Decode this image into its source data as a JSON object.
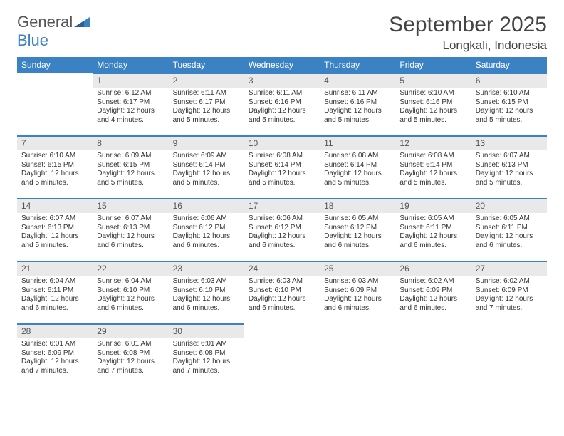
{
  "brand": {
    "text_a": "General",
    "text_b": "Blue",
    "accent": "#3b82c4",
    "gray": "#6b6b6b"
  },
  "header": {
    "title": "September 2025",
    "location": "Longkali, Indonesia"
  },
  "colors": {
    "header_bg": "#3b82c4",
    "header_fg": "#ffffff",
    "daybar_bg": "#e9e9e9",
    "daybar_border": "#3b82c4",
    "body_fg": "#333333"
  },
  "weekdays": [
    "Sunday",
    "Monday",
    "Tuesday",
    "Wednesday",
    "Thursday",
    "Friday",
    "Saturday"
  ],
  "layout": {
    "columns": 7,
    "rows": 6,
    "cell_fontsize_pt": 10,
    "daynum_fontsize_pt": 12
  },
  "weeks": [
    [
      null,
      {
        "n": "1",
        "sr": "Sunrise: 6:12 AM",
        "ss": "Sunset: 6:17 PM",
        "dl": "Daylight: 12 hours and 4 minutes."
      },
      {
        "n": "2",
        "sr": "Sunrise: 6:11 AM",
        "ss": "Sunset: 6:17 PM",
        "dl": "Daylight: 12 hours and 5 minutes."
      },
      {
        "n": "3",
        "sr": "Sunrise: 6:11 AM",
        "ss": "Sunset: 6:16 PM",
        "dl": "Daylight: 12 hours and 5 minutes."
      },
      {
        "n": "4",
        "sr": "Sunrise: 6:11 AM",
        "ss": "Sunset: 6:16 PM",
        "dl": "Daylight: 12 hours and 5 minutes."
      },
      {
        "n": "5",
        "sr": "Sunrise: 6:10 AM",
        "ss": "Sunset: 6:16 PM",
        "dl": "Daylight: 12 hours and 5 minutes."
      },
      {
        "n": "6",
        "sr": "Sunrise: 6:10 AM",
        "ss": "Sunset: 6:15 PM",
        "dl": "Daylight: 12 hours and 5 minutes."
      }
    ],
    [
      {
        "n": "7",
        "sr": "Sunrise: 6:10 AM",
        "ss": "Sunset: 6:15 PM",
        "dl": "Daylight: 12 hours and 5 minutes."
      },
      {
        "n": "8",
        "sr": "Sunrise: 6:09 AM",
        "ss": "Sunset: 6:15 PM",
        "dl": "Daylight: 12 hours and 5 minutes."
      },
      {
        "n": "9",
        "sr": "Sunrise: 6:09 AM",
        "ss": "Sunset: 6:14 PM",
        "dl": "Daylight: 12 hours and 5 minutes."
      },
      {
        "n": "10",
        "sr": "Sunrise: 6:08 AM",
        "ss": "Sunset: 6:14 PM",
        "dl": "Daylight: 12 hours and 5 minutes."
      },
      {
        "n": "11",
        "sr": "Sunrise: 6:08 AM",
        "ss": "Sunset: 6:14 PM",
        "dl": "Daylight: 12 hours and 5 minutes."
      },
      {
        "n": "12",
        "sr": "Sunrise: 6:08 AM",
        "ss": "Sunset: 6:14 PM",
        "dl": "Daylight: 12 hours and 5 minutes."
      },
      {
        "n": "13",
        "sr": "Sunrise: 6:07 AM",
        "ss": "Sunset: 6:13 PM",
        "dl": "Daylight: 12 hours and 5 minutes."
      }
    ],
    [
      {
        "n": "14",
        "sr": "Sunrise: 6:07 AM",
        "ss": "Sunset: 6:13 PM",
        "dl": "Daylight: 12 hours and 5 minutes."
      },
      {
        "n": "15",
        "sr": "Sunrise: 6:07 AM",
        "ss": "Sunset: 6:13 PM",
        "dl": "Daylight: 12 hours and 6 minutes."
      },
      {
        "n": "16",
        "sr": "Sunrise: 6:06 AM",
        "ss": "Sunset: 6:12 PM",
        "dl": "Daylight: 12 hours and 6 minutes."
      },
      {
        "n": "17",
        "sr": "Sunrise: 6:06 AM",
        "ss": "Sunset: 6:12 PM",
        "dl": "Daylight: 12 hours and 6 minutes."
      },
      {
        "n": "18",
        "sr": "Sunrise: 6:05 AM",
        "ss": "Sunset: 6:12 PM",
        "dl": "Daylight: 12 hours and 6 minutes."
      },
      {
        "n": "19",
        "sr": "Sunrise: 6:05 AM",
        "ss": "Sunset: 6:11 PM",
        "dl": "Daylight: 12 hours and 6 minutes."
      },
      {
        "n": "20",
        "sr": "Sunrise: 6:05 AM",
        "ss": "Sunset: 6:11 PM",
        "dl": "Daylight: 12 hours and 6 minutes."
      }
    ],
    [
      {
        "n": "21",
        "sr": "Sunrise: 6:04 AM",
        "ss": "Sunset: 6:11 PM",
        "dl": "Daylight: 12 hours and 6 minutes."
      },
      {
        "n": "22",
        "sr": "Sunrise: 6:04 AM",
        "ss": "Sunset: 6:10 PM",
        "dl": "Daylight: 12 hours and 6 minutes."
      },
      {
        "n": "23",
        "sr": "Sunrise: 6:03 AM",
        "ss": "Sunset: 6:10 PM",
        "dl": "Daylight: 12 hours and 6 minutes."
      },
      {
        "n": "24",
        "sr": "Sunrise: 6:03 AM",
        "ss": "Sunset: 6:10 PM",
        "dl": "Daylight: 12 hours and 6 minutes."
      },
      {
        "n": "25",
        "sr": "Sunrise: 6:03 AM",
        "ss": "Sunset: 6:09 PM",
        "dl": "Daylight: 12 hours and 6 minutes."
      },
      {
        "n": "26",
        "sr": "Sunrise: 6:02 AM",
        "ss": "Sunset: 6:09 PM",
        "dl": "Daylight: 12 hours and 6 minutes."
      },
      {
        "n": "27",
        "sr": "Sunrise: 6:02 AM",
        "ss": "Sunset: 6:09 PM",
        "dl": "Daylight: 12 hours and 7 minutes."
      }
    ],
    [
      {
        "n": "28",
        "sr": "Sunrise: 6:01 AM",
        "ss": "Sunset: 6:09 PM",
        "dl": "Daylight: 12 hours and 7 minutes."
      },
      {
        "n": "29",
        "sr": "Sunrise: 6:01 AM",
        "ss": "Sunset: 6:08 PM",
        "dl": "Daylight: 12 hours and 7 minutes."
      },
      {
        "n": "30",
        "sr": "Sunrise: 6:01 AM",
        "ss": "Sunset: 6:08 PM",
        "dl": "Daylight: 12 hours and 7 minutes."
      },
      null,
      null,
      null,
      null
    ]
  ]
}
